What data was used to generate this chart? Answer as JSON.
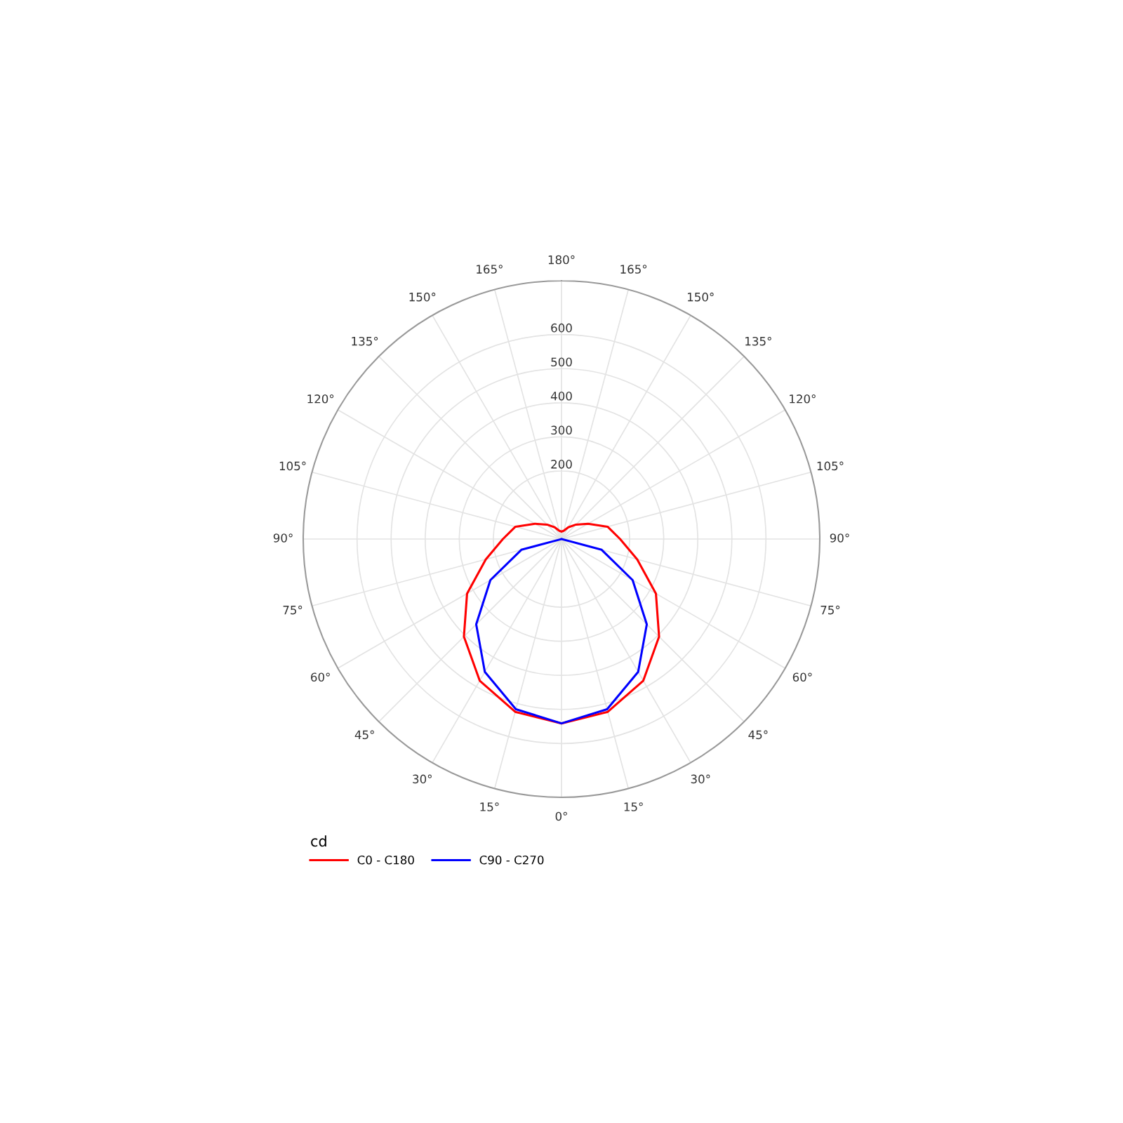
{
  "chart_data": {
    "type": "radar",
    "categories": [
      "180°",
      "165°",
      "150°",
      "135°",
      "120°",
      "105°",
      "90°",
      "75°",
      "60°",
      "45°",
      "30°",
      "15°",
      "0°",
      "15°",
      "30°",
      "45°",
      "60°",
      "75°",
      "90°",
      "105°",
      "120°",
      "135°",
      "150°",
      "165°"
    ],
    "series": [
      {
        "name": "C0 - C180",
        "color": "#ff0000",
        "values": [
          22,
          25,
          40,
          60,
          90,
          140,
          172,
          230,
          320,
          405,
          480,
          525,
          541,
          525,
          480,
          405,
          320,
          230,
          172,
          140,
          90,
          60,
          40,
          25
        ]
      },
      {
        "name": "C90 - C270",
        "color": "#0000ff",
        "values": [
          0,
          0,
          0,
          0,
          0,
          0,
          0,
          122,
          241,
          354,
          450,
          517,
          541,
          517,
          450,
          354,
          241,
          122,
          0,
          0,
          0,
          0,
          0,
          0
        ]
      }
    ],
    "ylim": [
      0,
      758
    ],
    "yticks": [
      200,
      300,
      400,
      500,
      600
    ],
    "grid": true,
    "legend": "bottom",
    "legend_title": "cd",
    "marker": "none",
    "line_style": "solid"
  }
}
